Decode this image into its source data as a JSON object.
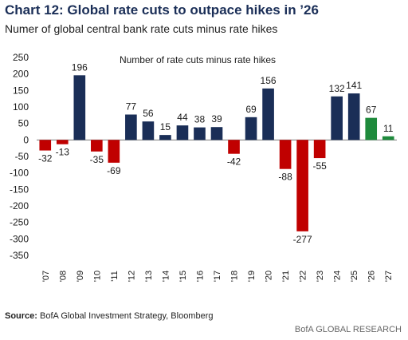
{
  "header": {
    "title": "Chart 12: Global rate cuts to outpace hikes in ’26",
    "subtitle": "Numer of global central bank rate cuts minus rate hikes"
  },
  "chart_data": {
    "type": "bar",
    "title": "Chart 12: Global rate cuts to outpace hikes in ’26",
    "subtitle": "Numer of global central bank rate cuts minus rate hikes",
    "legend_label": "Number of rate cuts minus rate hikes",
    "categories": [
      "'07",
      "'08",
      "'09",
      "'10",
      "'11",
      "'12",
      "'13",
      "'14",
      "'15",
      "'16",
      "'17",
      "'18",
      "'19",
      "'20",
      "'21",
      "'22",
      "'23",
      "'24",
      "'25",
      "'26",
      "'27"
    ],
    "values": [
      -32,
      -13,
      196,
      -35,
      -69,
      77,
      56,
      15,
      44,
      38,
      39,
      -42,
      69,
      156,
      -88,
      -277,
      -55,
      132,
      141,
      67,
      11
    ],
    "data_labels": [
      "-32",
      "-13",
      "196",
      "-35",
      "-69",
      "77",
      "56",
      "15",
      "44",
      "38",
      "39",
      "-42",
      "69",
      "156",
      "-88",
      "-277",
      "-55",
      "132",
      "141",
      "67",
      "11"
    ],
    "yticks": [
      250,
      200,
      150,
      100,
      50,
      0,
      -50,
      -100,
      -150,
      -200,
      -250,
      -300,
      -350
    ],
    "ylim": [
      -350,
      250
    ],
    "grid": false,
    "colors": {
      "positive": "#1a2e57",
      "negative": "#c00000",
      "forecast": "#1e8a3c"
    },
    "forecast_categories": [
      "'26",
      "'27"
    ]
  },
  "footer": {
    "source_label": "Source:",
    "source_text": " BofA Global Investment Strategy, Bloomberg",
    "brand": "BofA GLOBAL RESEARCH"
  }
}
